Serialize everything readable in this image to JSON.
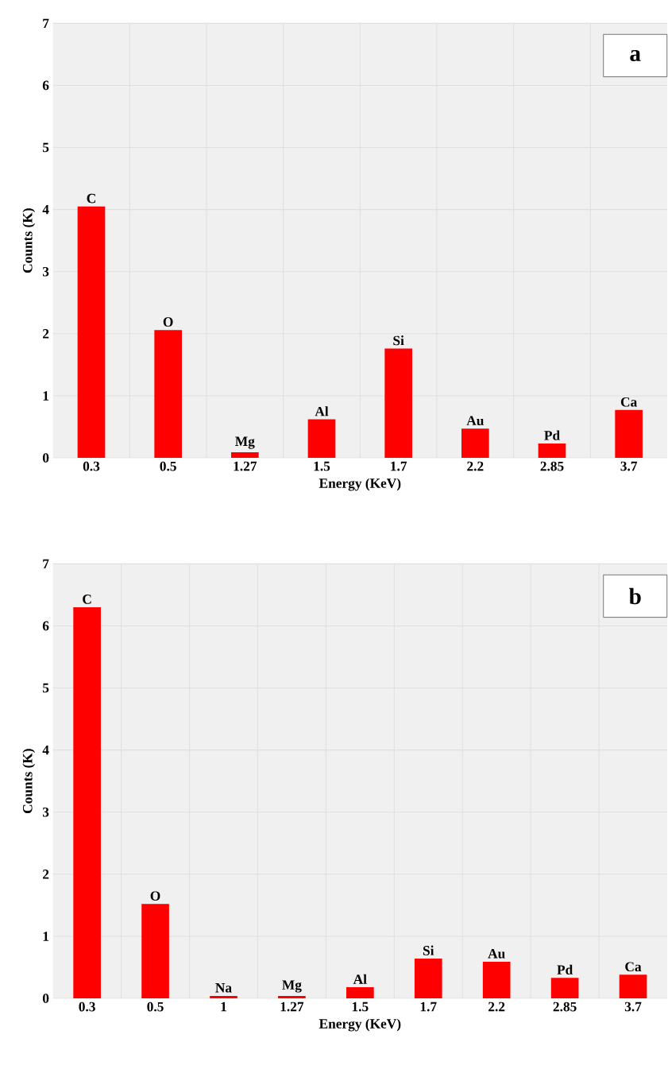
{
  "chart_data": [
    {
      "type": "bar",
      "xlabel": "Energy (KeV)",
      "ylabel": "Counts (K)",
      "categories": [
        "0.3",
        "0.5",
        "1.27",
        "1.5",
        "1.7",
        "2.2",
        "2.85",
        "3.7"
      ],
      "values": [
        4.05,
        2.06,
        0.09,
        0.62,
        1.76,
        0.47,
        0.23,
        0.77
      ],
      "color": "#ff0000",
      "ylim": [
        0,
        7
      ],
      "yticks": [
        0,
        1,
        2,
        3,
        4,
        5,
        6,
        7
      ],
      "grid": true,
      "annotations": [
        "a",
        {
          "text": "C",
          "x": "0.3",
          "y": 4.05
        },
        {
          "text": "O",
          "x": "0.5",
          "y": 2.06
        },
        {
          "text": "Mg",
          "x": "1.27",
          "y": 0.09
        },
        {
          "text": "Al",
          "x": "1.5",
          "y": 0.62
        },
        {
          "text": "Si",
          "x": "1.7",
          "y": 1.76
        },
        {
          "text": "Au",
          "x": "2.2",
          "y": 0.47
        },
        {
          "text": "Pd",
          "x": "2.85",
          "y": 0.23
        },
        {
          "text": "Ca",
          "x": "3.7",
          "y": 0.77
        }
      ]
    },
    {
      "type": "bar",
      "xlabel": "Energy (KeV)",
      "ylabel": "Counts (K)",
      "categories": [
        "0.3",
        "0.5",
        "1",
        "1.27",
        "1.5",
        "1.7",
        "2.2",
        "2.85",
        "3.7"
      ],
      "values": [
        6.3,
        1.52,
        0.04,
        0.04,
        0.18,
        0.64,
        0.59,
        0.33,
        0.38
      ],
      "color": "#ff0000",
      "ylim": [
        0,
        7
      ],
      "yticks": [
        0,
        1,
        2,
        3,
        4,
        5,
        6,
        7
      ],
      "grid": true,
      "annotations": [
        "b",
        {
          "text": "C",
          "x": "0.3",
          "y": 6.3
        },
        {
          "text": "O",
          "x": "0.5",
          "y": 1.52
        },
        {
          "text": "Na",
          "x": "1",
          "y": 0.04
        },
        {
          "text": "Mg",
          "x": "1.27",
          "y": 0.04
        },
        {
          "text": "Al",
          "x": "1.5",
          "y": 0.18
        },
        {
          "text": "Si",
          "x": "1.7",
          "y": 0.64
        },
        {
          "text": "Au",
          "x": "2.2",
          "y": 0.59
        },
        {
          "text": "Pd",
          "x": "2.85",
          "y": 0.33
        },
        {
          "text": "Ca",
          "x": "3.7",
          "y": 0.38
        }
      ]
    }
  ]
}
